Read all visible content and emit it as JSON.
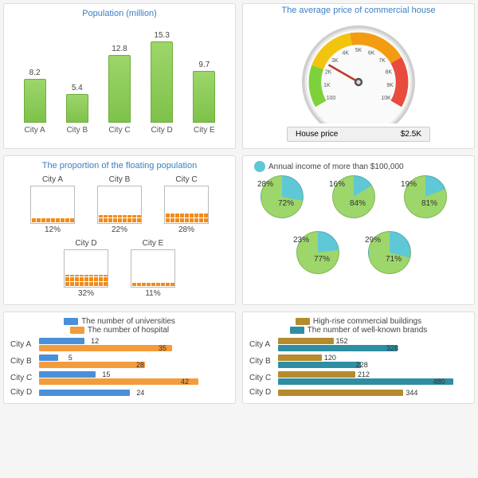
{
  "population_chart": {
    "title": "Population (million)",
    "type": "bar",
    "bar_color_top": "#9dd66a",
    "bar_color_bottom": "#7ec24a",
    "bar_border": "#6fad3c",
    "max": 18,
    "categories": [
      "City A",
      "City B",
      "City C",
      "City D",
      "City E"
    ],
    "values": [
      8.2,
      5.4,
      12.8,
      15.3,
      9.7
    ]
  },
  "gauge": {
    "title": "The average price of commercial house",
    "ticks": [
      "100",
      "1K",
      "2K",
      "3K",
      "4K",
      "5K",
      "6K",
      "7K",
      "8K",
      "9K",
      "10K"
    ],
    "zones": [
      {
        "from_deg": -120,
        "to_deg": -70,
        "color": "#7fd13b"
      },
      {
        "from_deg": -70,
        "to_deg": -10,
        "color": "#f2c40f"
      },
      {
        "from_deg": -10,
        "to_deg": 60,
        "color": "#f39c12"
      },
      {
        "from_deg": 60,
        "to_deg": 120,
        "color": "#e74c3c"
      }
    ],
    "needle_deg": -60,
    "readout_label": "House price",
    "readout_value": "$2.5K",
    "face_bg": "#fafafa",
    "rim_outer": "#cfcfcf",
    "rim_inner": "#e8e8e8",
    "tick_font": 8
  },
  "floating": {
    "title": "The proportion of the floating population",
    "fill_color": "#f28c1a",
    "box_border": "#bbbbbb",
    "items": [
      {
        "name": "City A",
        "pct": 12
      },
      {
        "name": "City B",
        "pct": 22
      },
      {
        "name": "City C",
        "pct": 28
      },
      {
        "name": "City D",
        "pct": 32
      },
      {
        "name": "City E",
        "pct": 11
      }
    ]
  },
  "income_pies": {
    "legend_label": "Annual income of more than $100,000",
    "legend_color": "#5fc8d6",
    "slice_color_primary": "#9dd66a",
    "slice_color_secondary": "#5fc8d6",
    "items": [
      {
        "secondary_pct": 28,
        "primary_pct": 72
      },
      {
        "secondary_pct": 16,
        "primary_pct": 84
      },
      {
        "secondary_pct": 19,
        "primary_pct": 81
      },
      {
        "secondary_pct": 23,
        "primary_pct": 77
      },
      {
        "secondary_pct": 29,
        "primary_pct": 71
      }
    ]
  },
  "uni_hosp": {
    "series": [
      {
        "label": "The number of universities",
        "color": "#4a90d9"
      },
      {
        "label": "The number of hospital",
        "color": "#f39c3b"
      }
    ],
    "max": 50,
    "rows": [
      {
        "city": "City A",
        "a": 12,
        "b": 35
      },
      {
        "city": "City B",
        "a": 5,
        "b": 28
      },
      {
        "city": "City C",
        "a": 15,
        "b": 42
      },
      {
        "city": "City D",
        "a": 24,
        "b": 0
      }
    ]
  },
  "brand_bldg": {
    "series": [
      {
        "label": "High-rise commercial buildings",
        "color": "#b58b2e"
      },
      {
        "label": "The number of well-known brands",
        "color": "#2e8ea3"
      }
    ],
    "max": 520,
    "rows": [
      {
        "city": "City A",
        "a": 152,
        "b": 328
      },
      {
        "city": "City B",
        "a": 120,
        "b": 228
      },
      {
        "city": "City C",
        "a": 212,
        "b": 480
      },
      {
        "city": "City D",
        "a": 344,
        "b": 0
      }
    ]
  }
}
